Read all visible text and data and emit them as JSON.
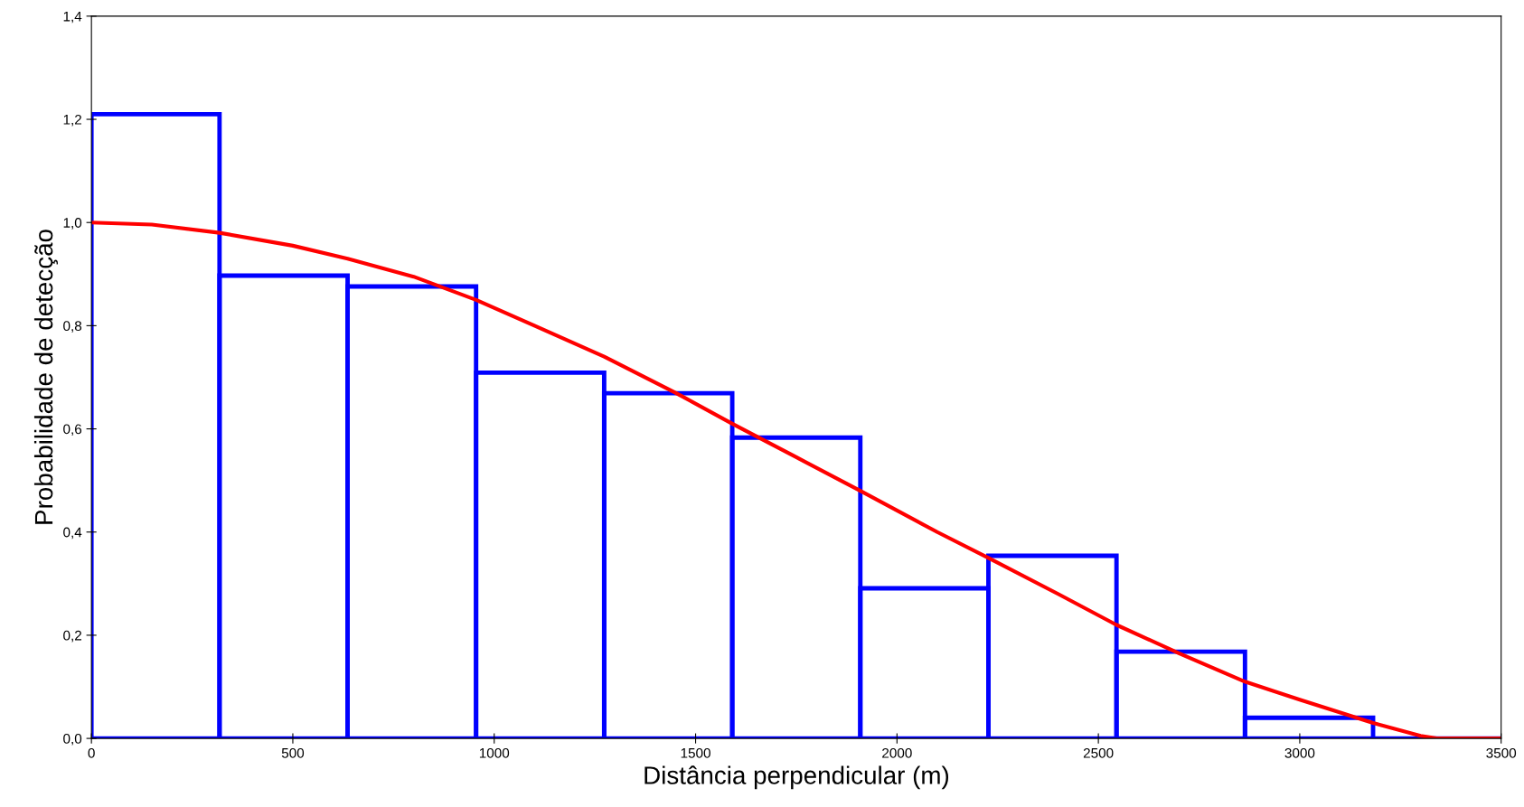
{
  "chart_data": {
    "type": "histogram",
    "xlabel": "Distância perpendicular (m)",
    "ylabel": "Probabilidade de detecção",
    "bins": [
      0,
      318,
      636,
      955,
      1273,
      1591,
      1909,
      2227,
      2545,
      2864,
      3182,
      3500
    ],
    "values": [
      1.21,
      0.897,
      0.876,
      0.709,
      0.669,
      0.583,
      0.291,
      0.354,
      0.168,
      0.04,
      0.0
    ],
    "color": "#0000ff",
    "series": [
      {
        "type": "line",
        "color": "#ff0000",
        "x": [
          0,
          150,
          318,
          500,
          636,
          800,
          955,
          1100,
          1273,
          1450,
          1591,
          1750,
          1909,
          2100,
          2227,
          2400,
          2545,
          2700,
          2864,
          3000,
          3182,
          3300,
          3340,
          3500
        ],
        "values": [
          1.0,
          0.996,
          0.98,
          0.955,
          0.93,
          0.895,
          0.85,
          0.8,
          0.74,
          0.67,
          0.61,
          0.545,
          0.48,
          0.4,
          0.35,
          0.28,
          0.22,
          0.165,
          0.11,
          0.075,
          0.03,
          0.005,
          0.0,
          0.0
        ]
      }
    ],
    "xlim": [
      0,
      3500
    ],
    "xticks": [
      0,
      500,
      1000,
      1500,
      2000,
      2500,
      3000,
      3500
    ],
    "ylim": [
      0,
      1.4
    ],
    "yticks": [
      {
        "value": 0,
        "label": "0,0"
      },
      {
        "value": 0.2,
        "label": "0,2"
      },
      {
        "value": 0.4,
        "label": "0,4"
      },
      {
        "value": 0.6,
        "label": "0,6"
      },
      {
        "value": 0.8,
        "label": "0,8"
      },
      {
        "value": 1.0,
        "label": "1,0"
      },
      {
        "value": 1.2,
        "label": "1,2"
      },
      {
        "value": 1.4,
        "label": "1,4"
      }
    ],
    "grid": false
  }
}
